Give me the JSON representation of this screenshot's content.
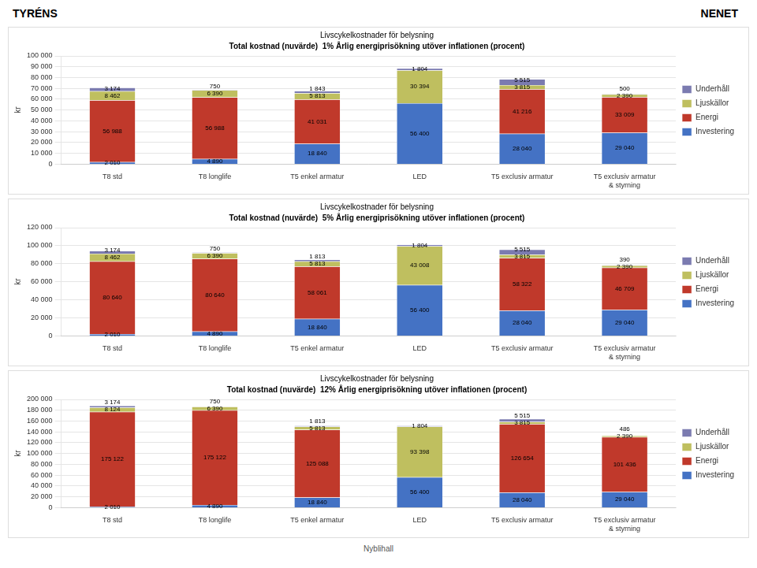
{
  "header": [
    "TYRÉNS",
    "NENET"
  ],
  "footer": "Nyblihall",
  "chart_data": [
    {
      "type": "bar",
      "title": "Livscykelkostnader för belysning",
      "subtitle": "Total kostnad (nuvärde)  1% Årlig energiprisökning utöver inflationen (procent)",
      "ylabel": "kr",
      "categories": [
        "T8 std",
        "T8 longlife",
        "T5 enkel armatur",
        "LED",
        "T5 exclusiv armatur",
        "T5 exclusiv armatur & styrning"
      ],
      "series": [
        {
          "name": "Investering",
          "color": "#4472C4",
          "values": [
            2010,
            4890,
            18840,
            56400,
            28040,
            29040
          ],
          "value_labels": [
            "2 010",
            "4 890",
            "18 840",
            "56 400",
            "28 040",
            "29 040"
          ]
        },
        {
          "name": "Energi",
          "color": "#C0392B",
          "values": [
            56988,
            56988,
            41031,
            0,
            41216,
            33009
          ],
          "value_labels": [
            "56 988",
            "56 988",
            "41 031",
            null,
            "41 216",
            "33 009"
          ]
        },
        {
          "name": "Ljuskällor",
          "color": "#BFBF5F",
          "values": [
            8462,
            6390,
            5813,
            30394,
            3815,
            2390
          ],
          "value_labels": [
            "8 462",
            "6 390",
            "5 813",
            "30 394",
            "3 815",
            "2 390"
          ]
        },
        {
          "name": "Underhåll",
          "color": "#7B7BB0",
          "values": [
            3174,
            750,
            1843,
            1804,
            5515,
            500
          ],
          "value_labels": [
            "3 174",
            "750",
            "1 843",
            "1 804",
            "5 515",
            "500"
          ]
        }
      ],
      "ylim": [
        0,
        100000
      ],
      "yticks": [
        0,
        {
          "value": 10000,
          "label": "10 000"
        },
        {
          "value": 20000,
          "label": "20 000"
        },
        {
          "value": 30000,
          "label": "30 000"
        },
        {
          "value": 40000,
          "label": "40 000"
        },
        {
          "value": 50000,
          "label": "50 000"
        },
        {
          "value": 60000,
          "label": "60 000"
        },
        {
          "value": 70000,
          "label": "70 000"
        },
        {
          "value": 80000,
          "label": "80 000"
        },
        {
          "value": 90000,
          "label": "90 000"
        },
        {
          "value": 100000,
          "label": "100 000"
        }
      ],
      "grid": true,
      "stacked": true,
      "data_labels": true,
      "legend": "right"
    },
    {
      "type": "bar",
      "title": "Livscykelkostnader för belysning",
      "subtitle": "Total kostnad (nuvärde)  5% Årlig energiprisökning utöver inflationen (procent)",
      "ylabel": "kr",
      "categories": [
        "T8 std",
        "T8 longlife",
        "T5 enkel armatur",
        "LED",
        "T5 exclusiv armatur",
        "T5 exclusiv armatur & styrning"
      ],
      "series": [
        {
          "name": "Investering",
          "color": "#4472C4",
          "values": [
            2010,
            4890,
            18840,
            56400,
            28040,
            29040
          ],
          "value_labels": [
            "2 010",
            "4 890",
            "18 840",
            "56 400",
            "28 040",
            "29 040"
          ]
        },
        {
          "name": "Energi",
          "color": "#C0392B",
          "values": [
            80640,
            80640,
            58061,
            0,
            58322,
            46709
          ],
          "value_labels": [
            "80 640",
            "80 640",
            "58 061",
            null,
            "58 322",
            "46 709"
          ]
        },
        {
          "name": "Ljuskällor",
          "color": "#BFBF5F",
          "values": [
            8462,
            6390,
            5813,
            43008,
            3815,
            2390
          ],
          "value_labels": [
            "8 462",
            "6 390",
            "5 813",
            "43 008",
            "3 815",
            "2 390"
          ]
        },
        {
          "name": "Underhåll",
          "color": "#7B7BB0",
          "values": [
            3174,
            750,
            1813,
            1804,
            5515,
            390
          ],
          "value_labels": [
            "3 174",
            "750",
            "1 813",
            "1 804",
            "5 515",
            "390"
          ]
        }
      ],
      "ylim": [
        0,
        120000
      ],
      "yticks": [
        0,
        {
          "value": 20000,
          "label": "20 000"
        },
        {
          "value": 40000,
          "label": "40 000"
        },
        {
          "value": 60000,
          "label": "60 000"
        },
        {
          "value": 80000,
          "label": "80 000"
        },
        {
          "value": 100000,
          "label": "100 000"
        },
        {
          "value": 120000,
          "label": "120 000"
        }
      ],
      "grid": true,
      "stacked": true,
      "data_labels": true,
      "legend": "right"
    },
    {
      "type": "bar",
      "title": "Livscykelkostnader för belysning",
      "subtitle": "Total kostnad (nuvärde)  12% Årlig energiprisökning utöver inflationen (procent)",
      "ylabel": "kr",
      "categories": [
        "T8 std",
        "T8 longlife",
        "T5 enkel armatur",
        "LED",
        "T5 exclusiv armatur",
        "T5 exclusiv armatur & styrning"
      ],
      "series": [
        {
          "name": "Investering",
          "color": "#4472C4",
          "values": [
            2010,
            4890,
            18840,
            56400,
            28040,
            29040
          ],
          "value_labels": [
            "2 010",
            "4 890",
            "18 840",
            "56 400",
            "28 040",
            "29 040"
          ]
        },
        {
          "name": "Energi",
          "color": "#C0392B",
          "values": [
            175122,
            175122,
            125088,
            0,
            126654,
            101436
          ],
          "value_labels": [
            "175 122",
            "175 122",
            "125 088",
            null,
            "126 654",
            "101 436"
          ]
        },
        {
          "name": "Ljuskällor",
          "color": "#BFBF5F",
          "values": [
            8124,
            6390,
            5813,
            93398,
            3815,
            2390
          ],
          "value_labels": [
            "8 124",
            "6 390",
            "5 813",
            "93 398",
            "3 815",
            "2 390"
          ]
        },
        {
          "name": "Underhåll",
          "color": "#7B7BB0",
          "values": [
            3174,
            750,
            1813,
            1804,
            5515,
            486
          ],
          "value_labels": [
            "3 174",
            "750",
            "1 813",
            "1 804",
            "5 515",
            "486"
          ]
        }
      ],
      "ylim": [
        0,
        200000
      ],
      "yticks": [
        0,
        {
          "value": 20000,
          "label": "20 000"
        },
        {
          "value": 40000,
          "label": "40 000"
        },
        {
          "value": 60000,
          "label": "60 000"
        },
        {
          "value": 80000,
          "label": "80 000"
        },
        {
          "value": 100000,
          "label": "100 000"
        },
        {
          "value": 120000,
          "label": "120 000"
        },
        {
          "value": 140000,
          "label": "140 000"
        },
        {
          "value": 160000,
          "label": "160 000"
        },
        {
          "value": 180000,
          "label": "180 000"
        },
        {
          "value": 200000,
          "label": "200 000"
        }
      ],
      "grid": true,
      "stacked": true,
      "data_labels": true,
      "legend": "right"
    }
  ]
}
